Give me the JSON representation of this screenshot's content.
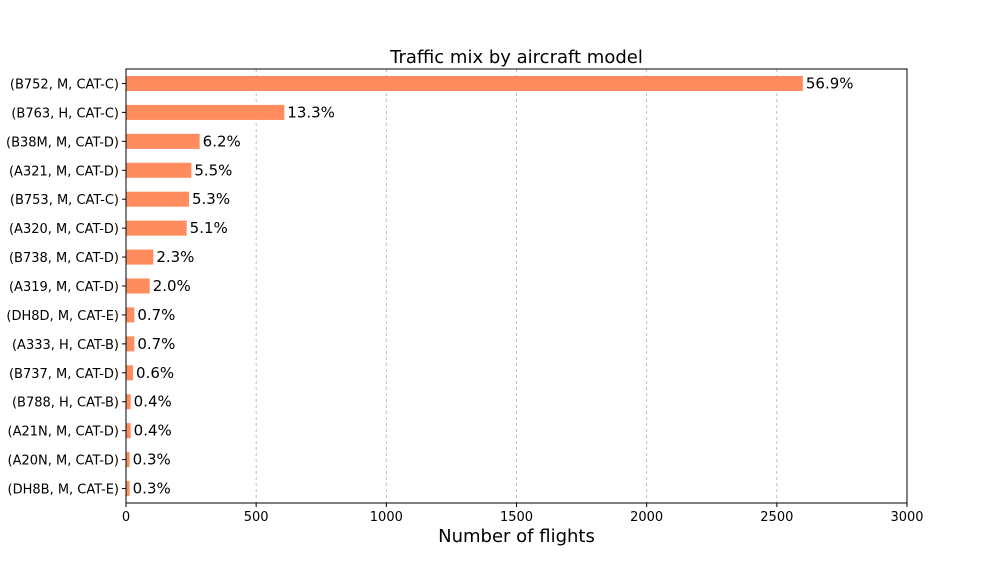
{
  "chart_data": {
    "type": "bar",
    "orientation": "horizontal",
    "title": "Traffic mix by aircraft model",
    "xlabel": "Number of flights",
    "ylabel": "",
    "xlim": [
      0,
      3000
    ],
    "xticks": [
      0,
      500,
      1000,
      1500,
      2000,
      2500,
      3000
    ],
    "grid": "vertical dashed",
    "bar_color": "#ff8c5f",
    "categories": [
      "(B752, M, CAT-C)",
      "(B763, H, CAT-C)",
      "(B38M, M, CAT-D)",
      "(A321, M, CAT-D)",
      "(B753, M, CAT-C)",
      "(A320, M, CAT-D)",
      "(B738, M, CAT-D)",
      "(A319, M, CAT-D)",
      "(DH8D, M, CAT-E)",
      "(A333, H, CAT-B)",
      "(B737, M, CAT-D)",
      "(B788, H, CAT-B)",
      "(A21N, M, CAT-D)",
      "(A20N, M, CAT-D)",
      "(DH8B, M, CAT-E)"
    ],
    "values": [
      2600,
      608,
      283,
      251,
      242,
      233,
      105,
      91,
      32,
      32,
      27,
      18,
      18,
      14,
      14
    ],
    "labels": [
      "56.9%",
      "13.3%",
      "6.2%",
      "5.5%",
      "5.3%",
      "5.1%",
      "2.3%",
      "2.0%",
      "0.7%",
      "0.7%",
      "0.6%",
      "0.4%",
      "0.4%",
      "0.3%",
      "0.3%"
    ]
  }
}
